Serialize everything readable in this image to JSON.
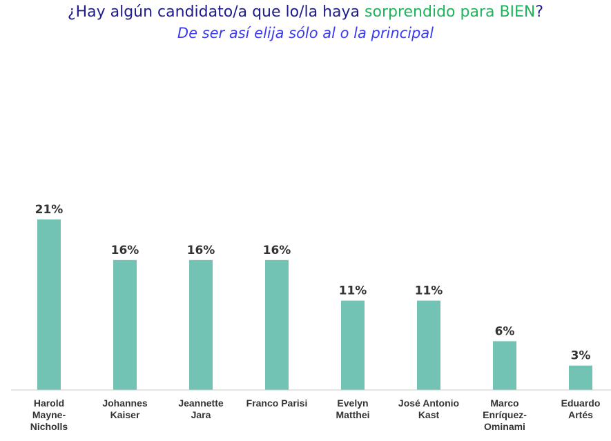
{
  "header": {
    "title_part1": "¿Hay algún candidato/a que lo/la haya ",
    "title_highlight": "sorprendido para BIEN",
    "title_part2": "?",
    "subtitle": "De ser así elija sólo al o la principal"
  },
  "colors": {
    "title": "#1c1c8c",
    "highlight": "#1eb45a",
    "subtitle": "#3a3af0",
    "bar": "#72c3b4",
    "axis": "#c8c8c8",
    "text": "#333333"
  },
  "chart_data": {
    "type": "bar",
    "categories": [
      [
        "Harold",
        "Mayne-",
        "Nicholls"
      ],
      [
        "Johannes",
        "Kaiser"
      ],
      [
        "Jeannette",
        "Jara"
      ],
      [
        "Franco Parisi"
      ],
      [
        "Evelyn",
        "Matthei"
      ],
      [
        "José Antonio",
        "Kast"
      ],
      [
        "Marco",
        "Enríquez-",
        "Ominami"
      ],
      [
        "Eduardo",
        "Artés"
      ]
    ],
    "values": [
      21,
      16,
      16,
      16,
      11,
      11,
      6,
      3
    ],
    "value_suffix": "%",
    "ylim": [
      0,
      21
    ],
    "grid": false,
    "legend": "none"
  }
}
